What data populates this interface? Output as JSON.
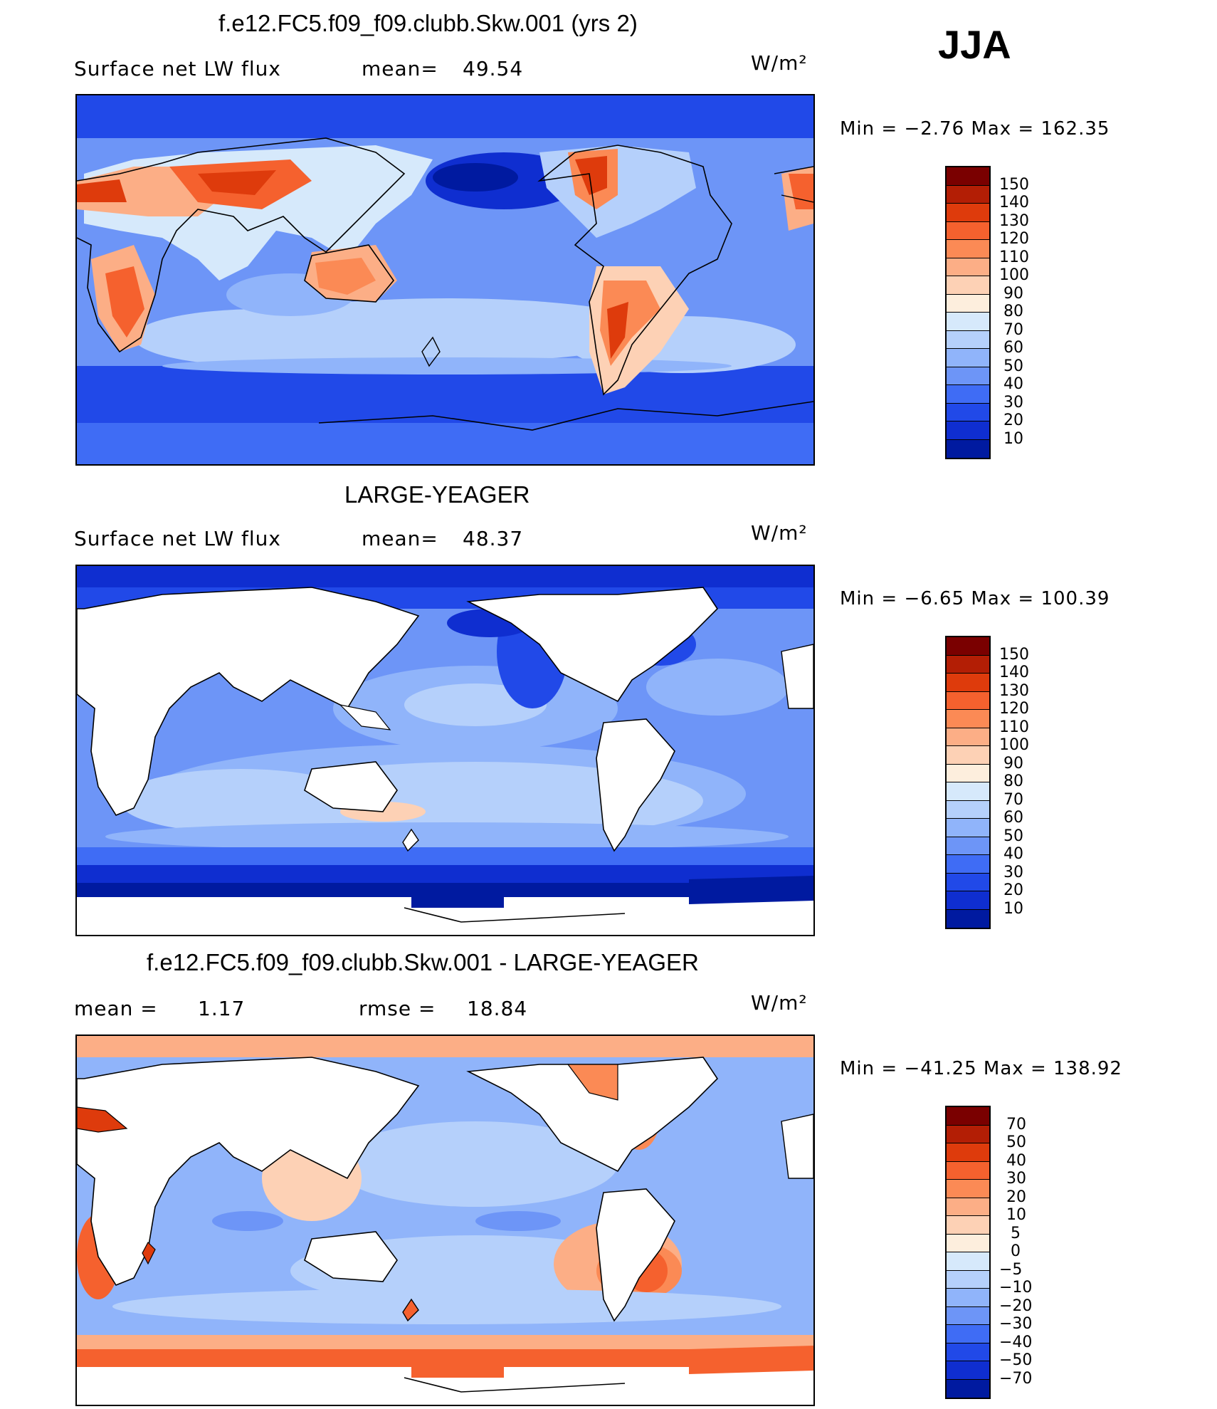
{
  "season": "JJA",
  "units": "W/m²",
  "panels": [
    {
      "title": "f.e12.FC5.f09_f09.clubb.Skw.001 (yrs 2)",
      "variable": "Surface net LW flux",
      "mean_label": "mean=",
      "mean_value": "49.54",
      "min_max": "Min =   −2.76 Max = 162.35",
      "colorbar_labels": [
        "150",
        "140",
        "130",
        "120",
        "110",
        "100",
        "90",
        "80",
        "70",
        "60",
        "50",
        "40",
        "30",
        "20",
        "10"
      ]
    },
    {
      "title": "LARGE-YEAGER",
      "variable": "Surface net LW flux",
      "mean_label": "mean=",
      "mean_value": "48.37",
      "min_max": "Min =   −6.65 Max = 100.39",
      "colorbar_labels": [
        "150",
        "140",
        "130",
        "120",
        "110",
        "100",
        "90",
        "80",
        "70",
        "60",
        "50",
        "40",
        "30",
        "20",
        "10"
      ]
    },
    {
      "title": "f.e12.FC5.f09_f09.clubb.Skw.001 - LARGE-YEAGER",
      "mean_label": "mean =",
      "mean_value": "1.17",
      "rmse_label": "rmse =",
      "rmse_value": "18.84",
      "min_max": "Min = −41.25 Max = 138.92",
      "colorbar_labels": [
        "70",
        "50",
        "40",
        "30",
        "20",
        "10",
        "5",
        "0",
        "−5",
        "−10",
        "−20",
        "−30",
        "−40",
        "−50",
        "−70"
      ]
    }
  ],
  "colors": {
    "flux_scale": [
      "#7a0000",
      "#b31e05",
      "#de3b0c",
      "#f5612e",
      "#fb8a55",
      "#fcae86",
      "#fdd1b5",
      "#fdeedd",
      "#d6e9fb",
      "#b5d0fb",
      "#90b4fa",
      "#6d95f7",
      "#3f6cf5",
      "#2149e8",
      "#0f2ed0",
      "#001aa0"
    ],
    "diff_scale": [
      "#7a0000",
      "#b31e05",
      "#de3b0c",
      "#f5612e",
      "#fb8a55",
      "#fcae86",
      "#fdd1b5",
      "#fdeedd",
      "#d6e9fb",
      "#b5d0fb",
      "#90b4fa",
      "#6d95f7",
      "#3f6cf5",
      "#2149e8",
      "#0f2ed0",
      "#001aa0"
    ],
    "land": "#ffffff",
    "coast": "#000000"
  }
}
